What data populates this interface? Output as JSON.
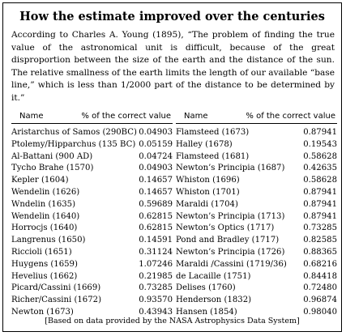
{
  "title": "How the estimate improved over the centuries",
  "intro": "According to Charles A. Young (1895), “The problem of finding the true value of the astronomical unit is difficult, because of the great disproportion between the size of the earth and the distance of the sun. The relative smallness of the earth limits the length of our available “base line,” which is less than 1/2000 part of the distance to be determined by it.”",
  "columns": [
    {
      "header": {
        "name": "Name",
        "value": "% of the correct value"
      },
      "rows": [
        {
          "name": "Aristarchus of Samos (290BC)",
          "value": "0.04903"
        },
        {
          "name": "Ptolemy/Hipparchus (135 BC)",
          "value": "0.05159"
        },
        {
          "name": "Al-Battani (900 AD)",
          "value": "0.04724"
        },
        {
          "name": "Tycho Brahe (1570)",
          "value": "0.04903"
        },
        {
          "name": "Kepler (1604)",
          "value": "0.14657"
        },
        {
          "name": "Wendelin (1626)",
          "value": "0.14657"
        },
        {
          "name": "Wndelin (1635)",
          "value": "0.59689"
        },
        {
          "name": "Wendelin (1640)",
          "value": "0.62815"
        },
        {
          "name": "Horrocjs (1640)",
          "value": "0.62815"
        },
        {
          "name": "Langrenus (1650)",
          "value": "0.14591"
        },
        {
          "name": "Riccioli (1651)",
          "value": "0.31124"
        },
        {
          "name": "Huygens (1659)",
          "value": "1.07246"
        },
        {
          "name": "Hevelius (1662)",
          "value": "0.21985"
        },
        {
          "name": "Picard/Cassini (1669)",
          "value": "0.73285"
        },
        {
          "name": "Richer/Cassini (1672)",
          "value": "0.93570"
        },
        {
          "name": "Newton (1673)",
          "value": "0.43943"
        }
      ]
    },
    {
      "header": {
        "name": "Name",
        "value": "% of the correct value"
      },
      "rows": [
        {
          "name": "Flamsteed (1673)",
          "value": "0.87941"
        },
        {
          "name": "Halley (1678)",
          "value": "0.19543"
        },
        {
          "name": "Flamsteed (1681)",
          "value": "0.58628"
        },
        {
          "name": "Newton’s Principia (1687)",
          "value": "0.42635"
        },
        {
          "name": "Whiston (1696)",
          "value": "0.58628"
        },
        {
          "name": "Whiston (1701)",
          "value": "0.87941"
        },
        {
          "name": "Maraldi (1704)",
          "value": "0.87941"
        },
        {
          "name": "Newton’s Principia (1713)",
          "value": "0.87941"
        },
        {
          "name": "Newton’s Optics (1717)",
          "value": "0.73285"
        },
        {
          "name": "Pond and Bradley (1717)",
          "value": "0.82585"
        },
        {
          "name": "Newton’s Principia (1726)",
          "value": "0.88365"
        },
        {
          "name": "Maraldi /Cassini (1719/36)",
          "value": "0.68216"
        },
        {
          "name": "de Lacaille (1751)",
          "value": "0.84418"
        },
        {
          "name": "Delises (1760)",
          "value": "0.72480"
        },
        {
          "name": "Henderson (1832)",
          "value": "0.96874"
        },
        {
          "name": "Hansen (1854)",
          "value": "0.98040"
        }
      ]
    }
  ],
  "footer": "[Based on data provided by the NASA Astrophysics Data System]"
}
